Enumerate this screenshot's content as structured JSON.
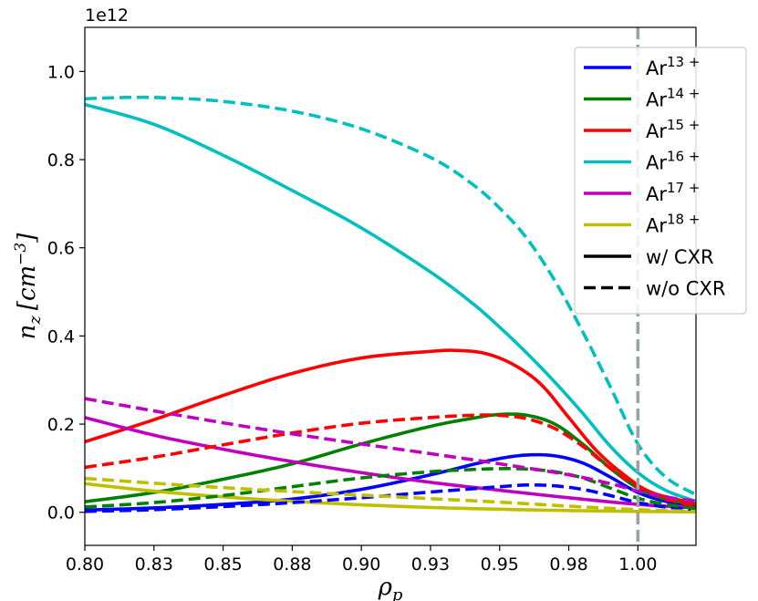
{
  "chart_data": {
    "type": "line",
    "xlabel_main": "ρ",
    "xlabel_sub": "p",
    "ylabel_main": "n",
    "ylabel_sub": "z",
    "ylabel_unit": "[cm",
    "ylabel_exp": "−3",
    "ylabel_close": "]",
    "offset_text": "1e12",
    "xlim": [
      0.8,
      1.021
    ],
    "ylim": [
      -0.075,
      1.1
    ],
    "x_ticks": [
      0.8,
      0.825,
      0.85,
      0.875,
      0.9,
      0.925,
      0.95,
      0.975,
      1.0
    ],
    "x_tick_labels": [
      "0.80",
      "0.83",
      "0.85",
      "0.88",
      "0.90",
      "0.93",
      "0.95",
      "0.98",
      "1.00"
    ],
    "y_ticks": [
      0.0,
      0.2,
      0.4,
      0.6,
      0.8,
      1.0
    ],
    "y_tick_labels": [
      "0.0",
      "0.2",
      "0.4",
      "0.6",
      "0.8",
      "1.0"
    ],
    "vline": {
      "x": 1.0,
      "color": "#95a5a6",
      "style": "dashed"
    },
    "grid": false,
    "legend_position": "top-right",
    "legend": [
      {
        "base": "Ar",
        "sup": "13 +",
        "color": "#0000ff",
        "style": "solid"
      },
      {
        "base": "Ar",
        "sup": "14 +",
        "color": "#008000",
        "style": "solid"
      },
      {
        "base": "Ar",
        "sup": "15 +",
        "color": "#ff0000",
        "style": "solid"
      },
      {
        "base": "Ar",
        "sup": "16 +",
        "color": "#00bfbf",
        "style": "solid"
      },
      {
        "base": "Ar",
        "sup": "17 +",
        "color": "#bf00bf",
        "style": "solid"
      },
      {
        "base": "Ar",
        "sup": "18 +",
        "color": "#bfbf00",
        "style": "solid"
      },
      {
        "base": "w/ CXR",
        "sup": "",
        "color": "#000000",
        "style": "solid"
      },
      {
        "base": "w/o CXR",
        "sup": "",
        "color": "#000000",
        "style": "dashed"
      }
    ],
    "series": [
      {
        "ion": "Ar13+",
        "cxr": true,
        "color": "#0000ff",
        "style": "solid",
        "x": [
          0.8,
          0.825,
          0.85,
          0.875,
          0.9,
          0.925,
          0.94,
          0.95,
          0.96,
          0.97,
          0.98,
          0.99,
          1.0,
          1.01,
          1.021
        ],
        "y": [
          0.005,
          0.01,
          0.018,
          0.03,
          0.052,
          0.085,
          0.108,
          0.122,
          0.13,
          0.128,
          0.112,
          0.08,
          0.045,
          0.025,
          0.015
        ]
      },
      {
        "ion": "Ar14+",
        "cxr": true,
        "color": "#008000",
        "style": "solid",
        "x": [
          0.8,
          0.825,
          0.85,
          0.875,
          0.9,
          0.925,
          0.94,
          0.95,
          0.96,
          0.97,
          0.98,
          0.99,
          1.0,
          1.01,
          1.021
        ],
        "y": [
          0.024,
          0.045,
          0.075,
          0.11,
          0.155,
          0.195,
          0.213,
          0.222,
          0.22,
          0.2,
          0.155,
          0.1,
          0.055,
          0.03,
          0.018
        ]
      },
      {
        "ion": "Ar15+",
        "cxr": true,
        "color": "#ff0000",
        "style": "solid",
        "x": [
          0.8,
          0.825,
          0.85,
          0.875,
          0.9,
          0.925,
          0.935,
          0.945,
          0.955,
          0.965,
          0.975,
          0.985,
          0.995,
          1.005,
          1.021
        ],
        "y": [
          0.16,
          0.21,
          0.265,
          0.315,
          0.35,
          0.365,
          0.367,
          0.36,
          0.335,
          0.29,
          0.215,
          0.14,
          0.085,
          0.045,
          0.02
        ]
      },
      {
        "ion": "Ar16+",
        "cxr": true,
        "color": "#00bfbf",
        "style": "solid",
        "x": [
          0.8,
          0.825,
          0.85,
          0.875,
          0.9,
          0.925,
          0.94,
          0.95,
          0.96,
          0.97,
          0.98,
          0.99,
          1.0,
          1.01,
          1.021
        ],
        "y": [
          0.925,
          0.88,
          0.81,
          0.73,
          0.645,
          0.545,
          0.475,
          0.42,
          0.36,
          0.295,
          0.225,
          0.15,
          0.09,
          0.05,
          0.025
        ]
      },
      {
        "ion": "Ar17+",
        "cxr": true,
        "color": "#bf00bf",
        "style": "solid",
        "x": [
          0.8,
          0.825,
          0.85,
          0.875,
          0.9,
          0.925,
          0.95,
          0.975,
          1.0,
          1.021
        ],
        "y": [
          0.215,
          0.175,
          0.143,
          0.115,
          0.09,
          0.068,
          0.05,
          0.033,
          0.018,
          0.01
        ]
      },
      {
        "ion": "Ar18+",
        "cxr": true,
        "color": "#bfbf00",
        "style": "solid",
        "x": [
          0.8,
          0.825,
          0.85,
          0.875,
          0.9,
          0.925,
          0.95,
          0.975,
          1.0,
          1.021
        ],
        "y": [
          0.065,
          0.048,
          0.035,
          0.025,
          0.017,
          0.011,
          0.007,
          0.004,
          0.002,
          0.001
        ]
      },
      {
        "ion": "Ar13+",
        "cxr": false,
        "color": "#0000ff",
        "style": "dashed",
        "x": [
          0.8,
          0.825,
          0.85,
          0.875,
          0.9,
          0.925,
          0.95,
          0.96,
          0.97,
          0.98,
          0.99,
          1.0,
          1.01,
          1.021
        ],
        "y": [
          0.002,
          0.006,
          0.013,
          0.022,
          0.033,
          0.046,
          0.058,
          0.062,
          0.06,
          0.052,
          0.038,
          0.022,
          0.012,
          0.006
        ]
      },
      {
        "ion": "Ar14+",
        "cxr": false,
        "color": "#008000",
        "style": "dashed",
        "x": [
          0.8,
          0.825,
          0.85,
          0.875,
          0.9,
          0.925,
          0.94,
          0.95,
          0.96,
          0.97,
          0.98,
          0.99,
          1.0,
          1.01,
          1.021
        ],
        "y": [
          0.012,
          0.022,
          0.038,
          0.058,
          0.078,
          0.092,
          0.097,
          0.099,
          0.098,
          0.092,
          0.078,
          0.055,
          0.032,
          0.018,
          0.009
        ]
      },
      {
        "ion": "Ar15+",
        "cxr": false,
        "color": "#ff0000",
        "style": "dashed",
        "x": [
          0.8,
          0.825,
          0.85,
          0.875,
          0.9,
          0.925,
          0.94,
          0.95,
          0.96,
          0.97,
          0.98,
          0.99,
          1.0,
          1.01,
          1.021
        ],
        "y": [
          0.102,
          0.125,
          0.153,
          0.18,
          0.202,
          0.215,
          0.22,
          0.22,
          0.212,
          0.19,
          0.15,
          0.1,
          0.058,
          0.03,
          0.015
        ]
      },
      {
        "ion": "Ar16+",
        "cxr": false,
        "color": "#00bfbf",
        "style": "dashed",
        "x": [
          0.8,
          0.815,
          0.83,
          0.85,
          0.875,
          0.9,
          0.925,
          0.94,
          0.95,
          0.96,
          0.97,
          0.98,
          0.99,
          1.0,
          1.01,
          1.021
        ],
        "y": [
          0.938,
          0.941,
          0.94,
          0.932,
          0.91,
          0.87,
          0.805,
          0.745,
          0.69,
          0.62,
          0.525,
          0.41,
          0.285,
          0.155,
          0.08,
          0.04
        ]
      },
      {
        "ion": "Ar17+",
        "cxr": false,
        "color": "#bf00bf",
        "style": "dashed",
        "x": [
          0.8,
          0.825,
          0.85,
          0.875,
          0.9,
          0.925,
          0.95,
          0.975,
          0.99,
          1.0,
          1.01,
          1.021
        ],
        "y": [
          0.258,
          0.23,
          0.203,
          0.178,
          0.155,
          0.133,
          0.11,
          0.085,
          0.065,
          0.048,
          0.035,
          0.025
        ]
      },
      {
        "ion": "Ar18+",
        "cxr": false,
        "color": "#bfbf00",
        "style": "dashed",
        "x": [
          0.8,
          0.825,
          0.85,
          0.875,
          0.9,
          0.925,
          0.95,
          0.975,
          1.0,
          1.021
        ],
        "y": [
          0.077,
          0.066,
          0.056,
          0.047,
          0.039,
          0.031,
          0.023,
          0.014,
          0.006,
          0.002
        ]
      }
    ]
  }
}
